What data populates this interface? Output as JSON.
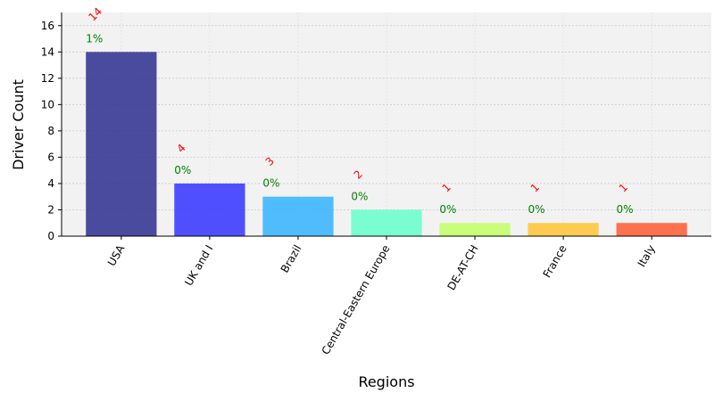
{
  "chart_data": {
    "type": "bar",
    "categories": [
      "USA",
      "UK and I",
      "Brazil",
      "Central-Eastern Europe",
      "DE-AT-CH",
      "France",
      "Italy"
    ],
    "values": [
      14,
      4,
      3,
      2,
      1,
      1,
      1
    ],
    "percent_labels": [
      "1%",
      "0%",
      "0%",
      "0%",
      "0%",
      "0%",
      "0%"
    ],
    "bar_colors": [
      "#2d2d91",
      "#3333ff",
      "#33b3ff",
      "#66ffcc",
      "#c2ff66",
      "#ffc433",
      "#ff5a33"
    ],
    "xlabel": "Regions",
    "ylabel": "Driver Count",
    "ylim": [
      0,
      17
    ],
    "yticks": [
      0,
      2,
      4,
      6,
      8,
      10,
      12,
      14,
      16
    ],
    "grid": true,
    "count_label_color": "#ff0000",
    "percent_label_color": "#008000",
    "plot_background": "#f2f2f2"
  }
}
